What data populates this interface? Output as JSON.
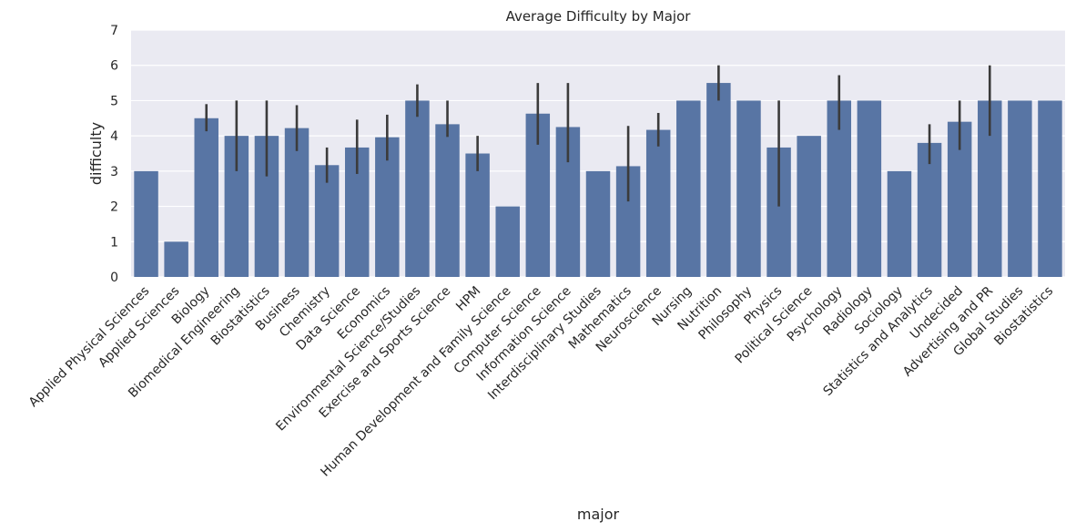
{
  "chart_data": {
    "type": "bar",
    "title": "Average Difficulty by Major",
    "xlabel": "major",
    "ylabel": "difficulty",
    "ylim": [
      0,
      7
    ],
    "yticks": [
      0,
      1,
      2,
      3,
      4,
      5,
      6,
      7
    ],
    "grid": true,
    "bar_color": "#5875a4",
    "errorbar_color": "#3b3b3b",
    "background_color": "#eaeaf2",
    "grid_color": "#ffffff",
    "categories": [
      "Applied Physical Sciences",
      "Applied Sciences",
      "Biology",
      "Biomedical Engineering",
      "Biostatistics",
      "Business",
      "Chemistry",
      "Data Science",
      "Economics",
      "Environmental Science/Studies",
      "Exercise and Sports Science",
      "HPM",
      "Human Development and Family Science",
      "Computer Science",
      "Information Science",
      "Interdisciplinary Studies",
      "Mathematics",
      "Neuroscience",
      "Nursing",
      "Nutrition",
      "Philosophy",
      "Physics",
      "Political Science",
      "Psychology",
      "Radiology",
      "Sociology",
      "Statistics and Analytics",
      "Undecided",
      "Advertising and PR",
      "Global Studies",
      "Biostatistics"
    ],
    "values": [
      3.0,
      1.0,
      4.5,
      4.0,
      4.0,
      4.22,
      3.17,
      3.67,
      3.96,
      5.0,
      4.33,
      3.5,
      2.0,
      4.63,
      4.25,
      3.0,
      3.14,
      4.17,
      5.0,
      5.5,
      5.0,
      3.67,
      4.0,
      5.0,
      5.0,
      3.0,
      3.8,
      4.4,
      5.0,
      5.0,
      5.0
    ],
    "error_low": [
      null,
      null,
      4.13,
      3.0,
      2.85,
      3.57,
      2.67,
      2.92,
      3.3,
      4.54,
      3.97,
      3.0,
      null,
      3.75,
      3.25,
      null,
      2.14,
      3.7,
      null,
      5.0,
      null,
      2.0,
      null,
      4.17,
      null,
      null,
      3.2,
      3.6,
      4.0,
      null,
      null
    ],
    "error_high": [
      null,
      null,
      4.9,
      5.0,
      5.0,
      4.87,
      3.67,
      4.46,
      4.6,
      5.46,
      5.0,
      4.0,
      null,
      5.5,
      5.5,
      null,
      4.28,
      4.65,
      null,
      6.0,
      null,
      5.0,
      null,
      5.72,
      null,
      null,
      4.33,
      5.0,
      6.0,
      null,
      null
    ]
  }
}
